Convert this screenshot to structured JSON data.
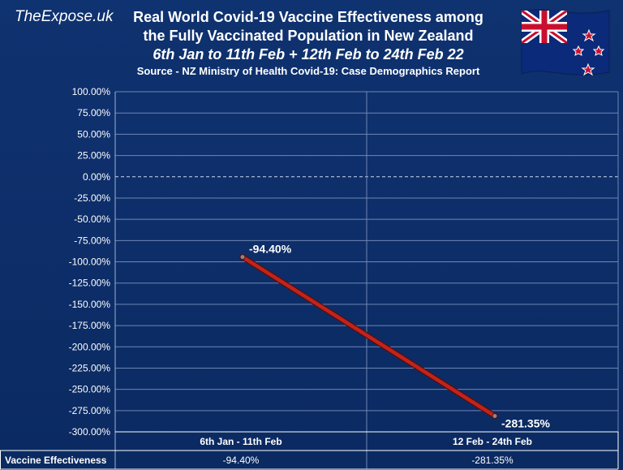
{
  "brand": "TheExpose.uk",
  "title_line1": "Real World Covid-19 Vaccine Effectiveness among",
  "title_line2": "the Fully Vaccinated Population in New Zealand",
  "subtitle": "6th Jan to 11th Feb + 12th Feb to 24th Feb 22",
  "source": "Source - NZ Ministry of Health Covid-19: Case Demographics Report",
  "flag_icon": "new-zealand-flag-icon",
  "chart_data": {
    "type": "line",
    "title": "Real World Covid-19 Vaccine Effectiveness among the Fully Vaccinated Population in New Zealand",
    "categories": [
      "6th Jan - 11th Feb",
      "12 Feb - 24th Feb"
    ],
    "series": [
      {
        "name": "Vaccine Effectiveness",
        "values": [
          -94.4,
          -281.35
        ],
        "labels": [
          "-94.40%",
          "-281.35%"
        ],
        "color": "#c0241c"
      }
    ],
    "ylim": [
      -300,
      100
    ],
    "yticks": [
      100,
      75,
      50,
      25,
      0,
      -25,
      -50,
      -75,
      -100,
      -125,
      -150,
      -175,
      -200,
      -225,
      -250,
      -275,
      -300
    ],
    "ytick_labels": [
      "100.00%",
      "75.00%",
      "50.00%",
      "25.00%",
      "0.00%",
      "-25.00%",
      "-50.00%",
      "-75.00%",
      "-100.00%",
      "-125.00%",
      "-150.00%",
      "-175.00%",
      "-200.00%",
      "-225.00%",
      "-250.00%",
      "-275.00%",
      "-300.00%"
    ],
    "grid": true,
    "zero_line": "dashed",
    "table": {
      "row_header": "Vaccine Effectiveness",
      "cells": [
        "-94.40%",
        "-281.35%"
      ]
    },
    "colors": {
      "background": "#0c2d66",
      "grid": "#6f86b3",
      "line": "#c0241c"
    }
  }
}
